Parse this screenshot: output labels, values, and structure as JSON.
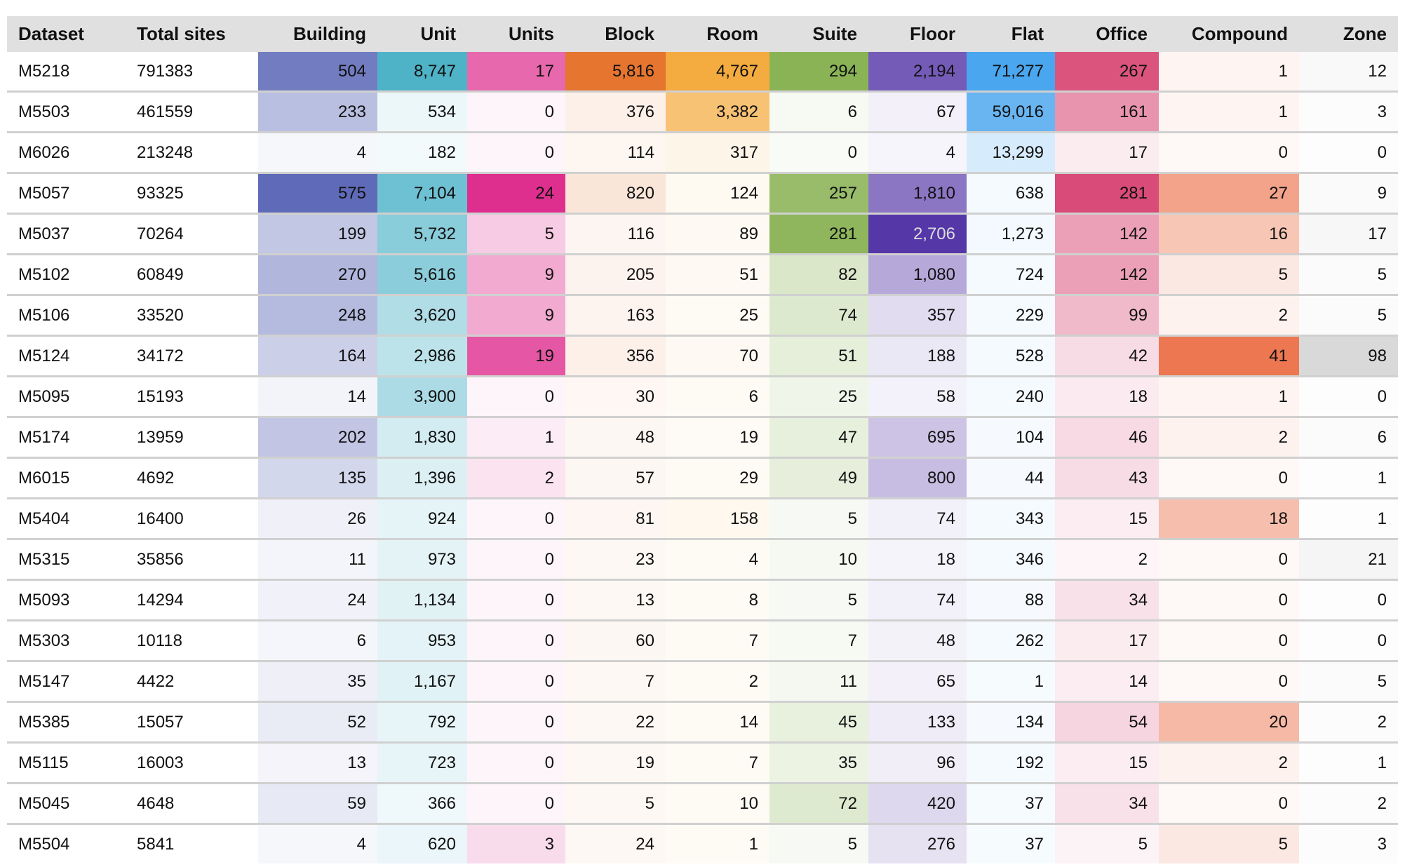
{
  "table": {
    "columns": [
      {
        "label": "Dataset",
        "align": "left"
      },
      {
        "label": "Total sites",
        "align": "left"
      },
      {
        "label": "Building",
        "color": "#5f6bb8"
      },
      {
        "label": "Unit",
        "color": "#4fb3c8"
      },
      {
        "label": "Units",
        "color": "#de2e8e"
      },
      {
        "label": "Block",
        "color": "#e5752f"
      },
      {
        "label": "Room",
        "color": "#f4ab3f"
      },
      {
        "label": "Suite",
        "color": "#8ab355"
      },
      {
        "label": "Floor",
        "color": "#5537a8"
      },
      {
        "label": "Flat",
        "color": "#4aa6ee"
      },
      {
        "label": "Office",
        "color": "#d94b78"
      },
      {
        "label": "Compound",
        "color": "#ec7750"
      },
      {
        "label": "Zone",
        "color": "#d9d9d9"
      }
    ],
    "rows": [
      [
        "M5218",
        "791383",
        "504",
        "8,747",
        "17",
        "5,816",
        "4,767",
        "294",
        "2,194",
        "71,277",
        "267",
        "1",
        "12"
      ],
      [
        "M5503",
        "461559",
        "233",
        "534",
        "0",
        "376",
        "3,382",
        "6",
        "67",
        "59,016",
        "161",
        "1",
        "3"
      ],
      [
        "M6026",
        "213248",
        "4",
        "182",
        "0",
        "114",
        "317",
        "0",
        "4",
        "13,299",
        "17",
        "0",
        "0"
      ],
      [
        "M5057",
        "93325",
        "575",
        "7,104",
        "24",
        "820",
        "124",
        "257",
        "1,810",
        "638",
        "281",
        "27",
        "9"
      ],
      [
        "M5037",
        "70264",
        "199",
        "5,732",
        "5",
        "116",
        "89",
        "281",
        "2,706",
        "1,273",
        "142",
        "16",
        "17"
      ],
      [
        "M5102",
        "60849",
        "270",
        "5,616",
        "9",
        "205",
        "51",
        "82",
        "1,080",
        "724",
        "142",
        "5",
        "5"
      ],
      [
        "M5106",
        "33520",
        "248",
        "3,620",
        "9",
        "163",
        "25",
        "74",
        "357",
        "229",
        "99",
        "2",
        "5"
      ],
      [
        "M5124",
        "34172",
        "164",
        "2,986",
        "19",
        "356",
        "70",
        "51",
        "188",
        "528",
        "42",
        "41",
        "98"
      ],
      [
        "M5095",
        "15193",
        "14",
        "3,900",
        "0",
        "30",
        "6",
        "25",
        "58",
        "240",
        "18",
        "1",
        "0"
      ],
      [
        "M5174",
        "13959",
        "202",
        "1,830",
        "1",
        "48",
        "19",
        "47",
        "695",
        "104",
        "46",
        "2",
        "6"
      ],
      [
        "M6015",
        "4692",
        "135",
        "1,396",
        "2",
        "57",
        "29",
        "49",
        "800",
        "44",
        "43",
        "0",
        "1"
      ],
      [
        "M5404",
        "16400",
        "26",
        "924",
        "0",
        "81",
        "158",
        "5",
        "74",
        "343",
        "15",
        "18",
        "1"
      ],
      [
        "M5315",
        "35856",
        "11",
        "973",
        "0",
        "23",
        "4",
        "10",
        "18",
        "346",
        "2",
        "0",
        "21"
      ],
      [
        "M5093",
        "14294",
        "24",
        "1,134",
        "0",
        "13",
        "8",
        "5",
        "74",
        "88",
        "34",
        "0",
        "0"
      ],
      [
        "M5303",
        "10118",
        "6",
        "953",
        "0",
        "60",
        "7",
        "7",
        "48",
        "262",
        "17",
        "0",
        "0"
      ],
      [
        "M5147",
        "4422",
        "35",
        "1,167",
        "0",
        "7",
        "2",
        "11",
        "65",
        "1",
        "14",
        "0",
        "5"
      ],
      [
        "M5385",
        "15057",
        "52",
        "792",
        "0",
        "22",
        "14",
        "45",
        "133",
        "134",
        "54",
        "20",
        "2"
      ],
      [
        "M5115",
        "16003",
        "13",
        "723",
        "0",
        "19",
        "7",
        "35",
        "96",
        "192",
        "15",
        "2",
        "1"
      ],
      [
        "M5045",
        "4648",
        "59",
        "366",
        "0",
        "5",
        "10",
        "72",
        "420",
        "37",
        "34",
        "0",
        "2"
      ],
      [
        "M5504",
        "5841",
        "4",
        "620",
        "3",
        "24",
        "1",
        "5",
        "276",
        "37",
        "5",
        "5",
        "3"
      ]
    ]
  }
}
